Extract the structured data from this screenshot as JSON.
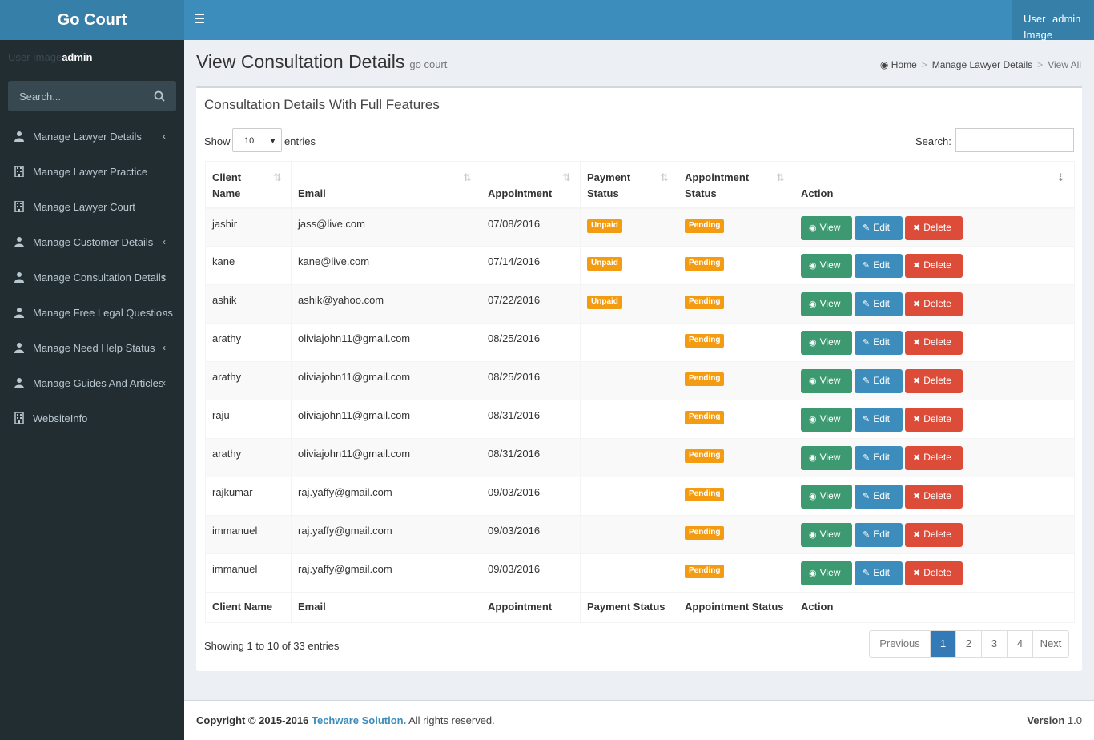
{
  "app": {
    "logo": "Go Court"
  },
  "header": {
    "user_image_alt": "User Image",
    "user_name": "admin"
  },
  "sidebar": {
    "user_image_alt": "User Image",
    "user_name": "admin",
    "search_placeholder": "Search...",
    "items": [
      {
        "label": "Manage Lawyer Details",
        "icon": "user-icon",
        "has_children": true
      },
      {
        "label": "Manage Lawyer Practice",
        "icon": "building-icon",
        "has_children": false
      },
      {
        "label": "Manage Lawyer Court",
        "icon": "building-icon",
        "has_children": false
      },
      {
        "label": "Manage Customer Details",
        "icon": "user-icon",
        "has_children": true
      },
      {
        "label": "Manage Consultation Details",
        "icon": "user-icon",
        "has_children": true
      },
      {
        "label": "Manage Free Legal Questions",
        "icon": "user-icon",
        "has_children": true
      },
      {
        "label": "Manage Need Help Status",
        "icon": "user-icon",
        "has_children": true
      },
      {
        "label": "Manage Guides And Articles",
        "icon": "user-icon",
        "has_children": true
      },
      {
        "label": "WebsiteInfo",
        "icon": "building-icon",
        "has_children": false
      }
    ]
  },
  "page": {
    "title": "View Consultation Details",
    "subtitle": "go court",
    "breadcrumb": [
      "Home",
      "Manage Lawyer Details",
      "View All"
    ]
  },
  "box": {
    "title": "Consultation Details With Full Features",
    "show_label": "Show",
    "page_length": "10",
    "entries_label": "entries",
    "search_label": "Search:",
    "search_value": ""
  },
  "table": {
    "columns": [
      "Client Name",
      "Email",
      "Appointment",
      "Payment Status",
      "Appointment Status",
      "Action"
    ],
    "rows": [
      {
        "name": "jashir",
        "email": "jass@live.com",
        "date": "07/08/2016",
        "payment": "Unpaid",
        "status": "Pending"
      },
      {
        "name": "kane",
        "email": "kane@live.com",
        "date": "07/14/2016",
        "payment": "Unpaid",
        "status": "Pending"
      },
      {
        "name": "ashik",
        "email": "ashik@yahoo.com",
        "date": "07/22/2016",
        "payment": "Unpaid",
        "status": "Pending"
      },
      {
        "name": "arathy",
        "email": "oliviajohn11@gmail.com",
        "date": "08/25/2016",
        "payment": "",
        "status": "Pending"
      },
      {
        "name": "arathy",
        "email": "oliviajohn11@gmail.com",
        "date": "08/25/2016",
        "payment": "",
        "status": "Pending"
      },
      {
        "name": "raju",
        "email": "oliviajohn11@gmail.com",
        "date": "08/31/2016",
        "payment": "",
        "status": "Pending"
      },
      {
        "name": "arathy",
        "email": "oliviajohn11@gmail.com",
        "date": "08/31/2016",
        "payment": "",
        "status": "Pending"
      },
      {
        "name": "rajkumar",
        "email": "raj.yaffy@gmail.com",
        "date": "09/03/2016",
        "payment": "",
        "status": "Pending"
      },
      {
        "name": "immanuel",
        "email": "raj.yaffy@gmail.com",
        "date": "09/03/2016",
        "payment": "",
        "status": "Pending"
      },
      {
        "name": "immanuel",
        "email": "raj.yaffy@gmail.com",
        "date": "09/03/2016",
        "payment": "",
        "status": "Pending"
      }
    ],
    "actions": {
      "view": "View",
      "edit": "Edit",
      "delete": "Delete"
    }
  },
  "pagination": {
    "info": "Showing 1 to 10 of 33 entries",
    "previous": "Previous",
    "pages": [
      "1",
      "2",
      "3",
      "4"
    ],
    "current": "1",
    "next": "Next"
  },
  "footer": {
    "copyright_prefix": "Copyright © 2015-2016",
    "company": "Techware Solution.",
    "rights": "All rights reserved.",
    "version_label": "Version",
    "version": "1.0"
  },
  "colors": {
    "header": "#3c8dbc",
    "logo_bg": "#367fa9",
    "sidebar": "#222d32",
    "view_button": "#3d9970",
    "edit_button": "#3c8dbc",
    "delete_button": "#dd4b39",
    "label_orange": "#f39c12"
  }
}
